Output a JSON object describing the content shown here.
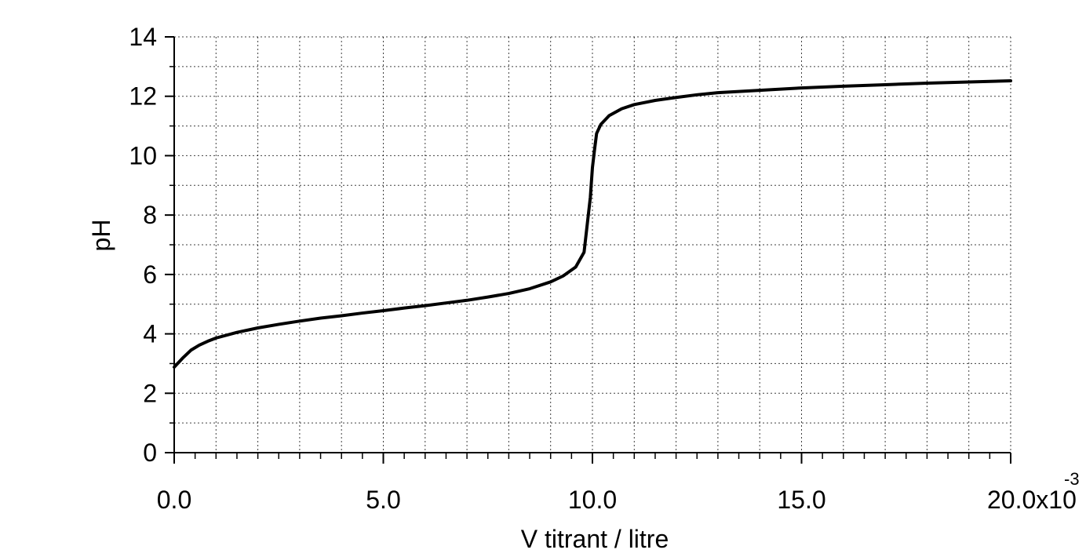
{
  "chart_data": {
    "type": "line",
    "xlabel": "V titrant / litre",
    "ylabel": "pH",
    "xlim": [
      0.0,
      20.0
    ],
    "ylim": [
      0,
      14
    ],
    "x_tick_labels": [
      "0.0",
      "5.0",
      "10.0",
      "15.0",
      "20.0x10"
    ],
    "x_tick_values": [
      0,
      5,
      10,
      15,
      20
    ],
    "x_exponent_label": "-3",
    "y_tick_labels": [
      "0",
      "2",
      "4",
      "6",
      "8",
      "10",
      "12",
      "14"
    ],
    "y_tick_values": [
      0,
      2,
      4,
      6,
      8,
      10,
      12,
      14
    ],
    "grid": true,
    "series": [
      {
        "color": "#000000",
        "x": [
          0.0,
          0.2,
          0.4,
          0.6,
          0.8,
          1.0,
          1.5,
          2.0,
          2.5,
          3.0,
          3.5,
          4.0,
          4.5,
          5.0,
          5.5,
          6.0,
          6.5,
          7.0,
          7.5,
          8.0,
          8.5,
          9.0,
          9.3,
          9.6,
          9.8,
          9.95,
          10.0,
          10.05,
          10.1,
          10.2,
          10.4,
          10.7,
          11.0,
          11.5,
          12.0,
          12.5,
          13.0,
          14.0,
          15.0,
          16.0,
          17.0,
          18.0,
          19.0,
          20.0
        ],
        "y": [
          2.88,
          3.18,
          3.45,
          3.62,
          3.75,
          3.86,
          4.05,
          4.2,
          4.32,
          4.43,
          4.53,
          4.61,
          4.7,
          4.78,
          4.87,
          4.95,
          5.04,
          5.13,
          5.24,
          5.36,
          5.52,
          5.75,
          5.95,
          6.25,
          6.75,
          8.6,
          9.6,
          10.2,
          10.75,
          11.05,
          11.35,
          11.58,
          11.72,
          11.86,
          11.96,
          12.05,
          12.12,
          12.2,
          12.28,
          12.34,
          12.39,
          12.44,
          12.48,
          12.52
        ]
      }
    ]
  }
}
